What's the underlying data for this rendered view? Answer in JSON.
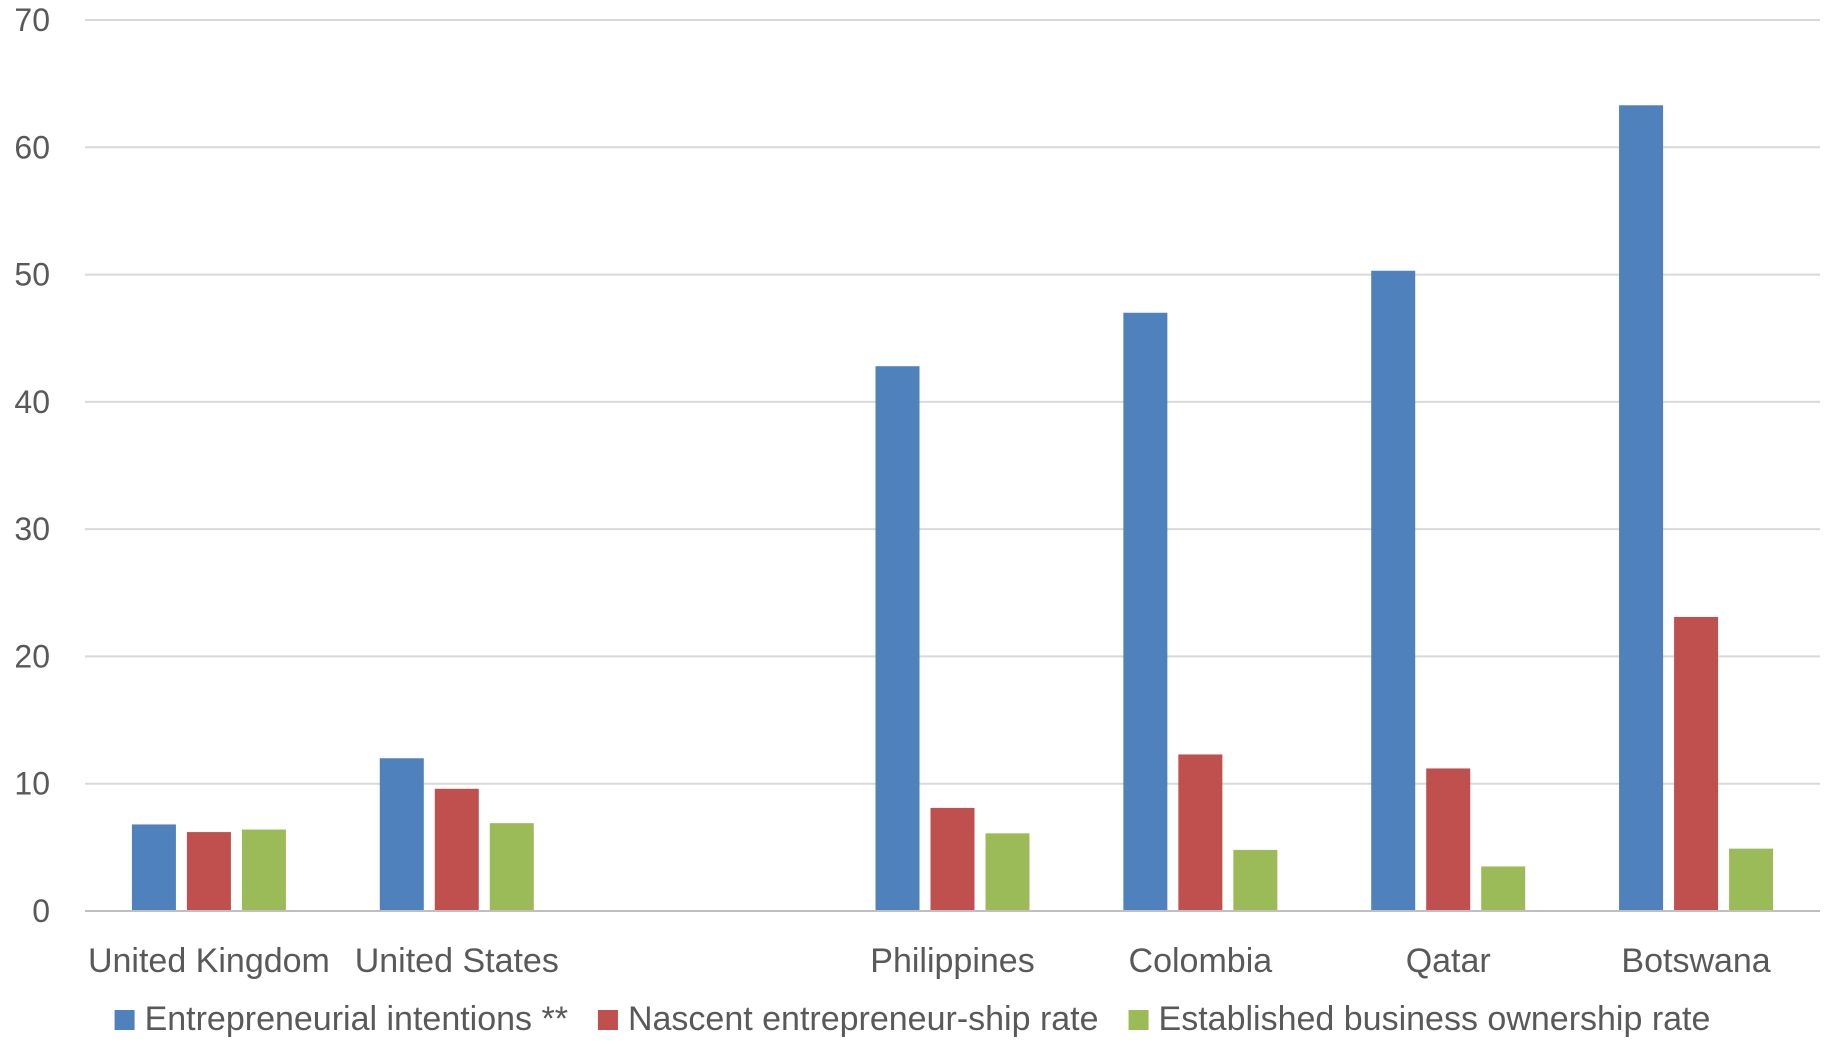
{
  "chart_data": {
    "type": "bar",
    "title": "",
    "xlabel": "",
    "ylabel": "",
    "ylim": [
      0,
      70
    ],
    "yticks": [
      0,
      10,
      20,
      30,
      40,
      50,
      60,
      70
    ],
    "grid": true,
    "legend_position": "bottom",
    "categories": [
      "United Kingdom",
      "United States",
      "",
      "Philippines",
      "Colombia",
      "Qatar",
      "Botswana"
    ],
    "series": [
      {
        "name": "Entrepreneurial intentions **",
        "color": "#4F81BD",
        "values": [
          6.8,
          12.0,
          null,
          42.8,
          47.0,
          50.3,
          63.3
        ]
      },
      {
        "name": "Nascent entrepreneur-ship rate",
        "color": "#C0504D",
        "values": [
          6.2,
          9.6,
          null,
          8.1,
          12.3,
          11.2,
          23.1
        ]
      },
      {
        "name": "Established business ownership rate",
        "color": "#9BBB59",
        "values": [
          6.4,
          6.9,
          null,
          6.1,
          4.8,
          3.5,
          4.9
        ]
      }
    ]
  },
  "colors": {
    "gridline": "#D9D9D9",
    "axis": "#BFBFBF",
    "text": "#595959"
  }
}
